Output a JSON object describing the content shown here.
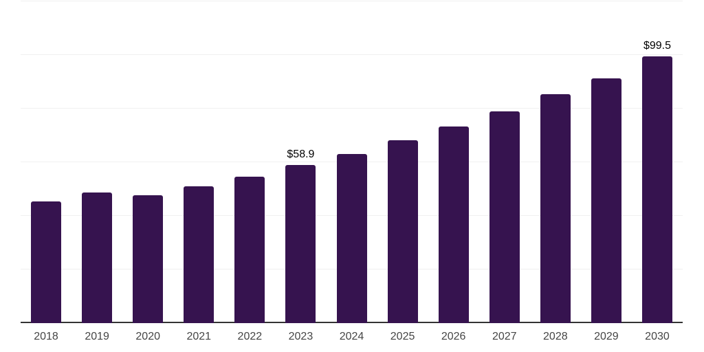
{
  "chart_data": {
    "type": "bar",
    "categories": [
      "2018",
      "2019",
      "2020",
      "2021",
      "2022",
      "2023",
      "2024",
      "2025",
      "2026",
      "2027",
      "2028",
      "2029",
      "2030"
    ],
    "values": [
      45.3,
      48.6,
      47.6,
      50.9,
      54.5,
      58.9,
      63.1,
      68.3,
      73.4,
      79.0,
      85.4,
      91.3,
      99.5
    ],
    "bar_labels": [
      "",
      "",
      "",
      "",
      "",
      "$58.9",
      "",
      "",
      "",
      "",
      "",
      "",
      "$99.5"
    ],
    "xlabel": "",
    "ylabel": "",
    "ylim": [
      0,
      120
    ],
    "gridline_values": [
      20,
      40,
      60,
      80,
      100,
      120
    ],
    "grid": true,
    "legend": false,
    "colors": {
      "bar": "#36134f",
      "axis_line": "#333333",
      "gridline": "#f0f0f0",
      "tick_label": "#454545",
      "value_label": "#000000",
      "background": "#ffffff"
    }
  }
}
